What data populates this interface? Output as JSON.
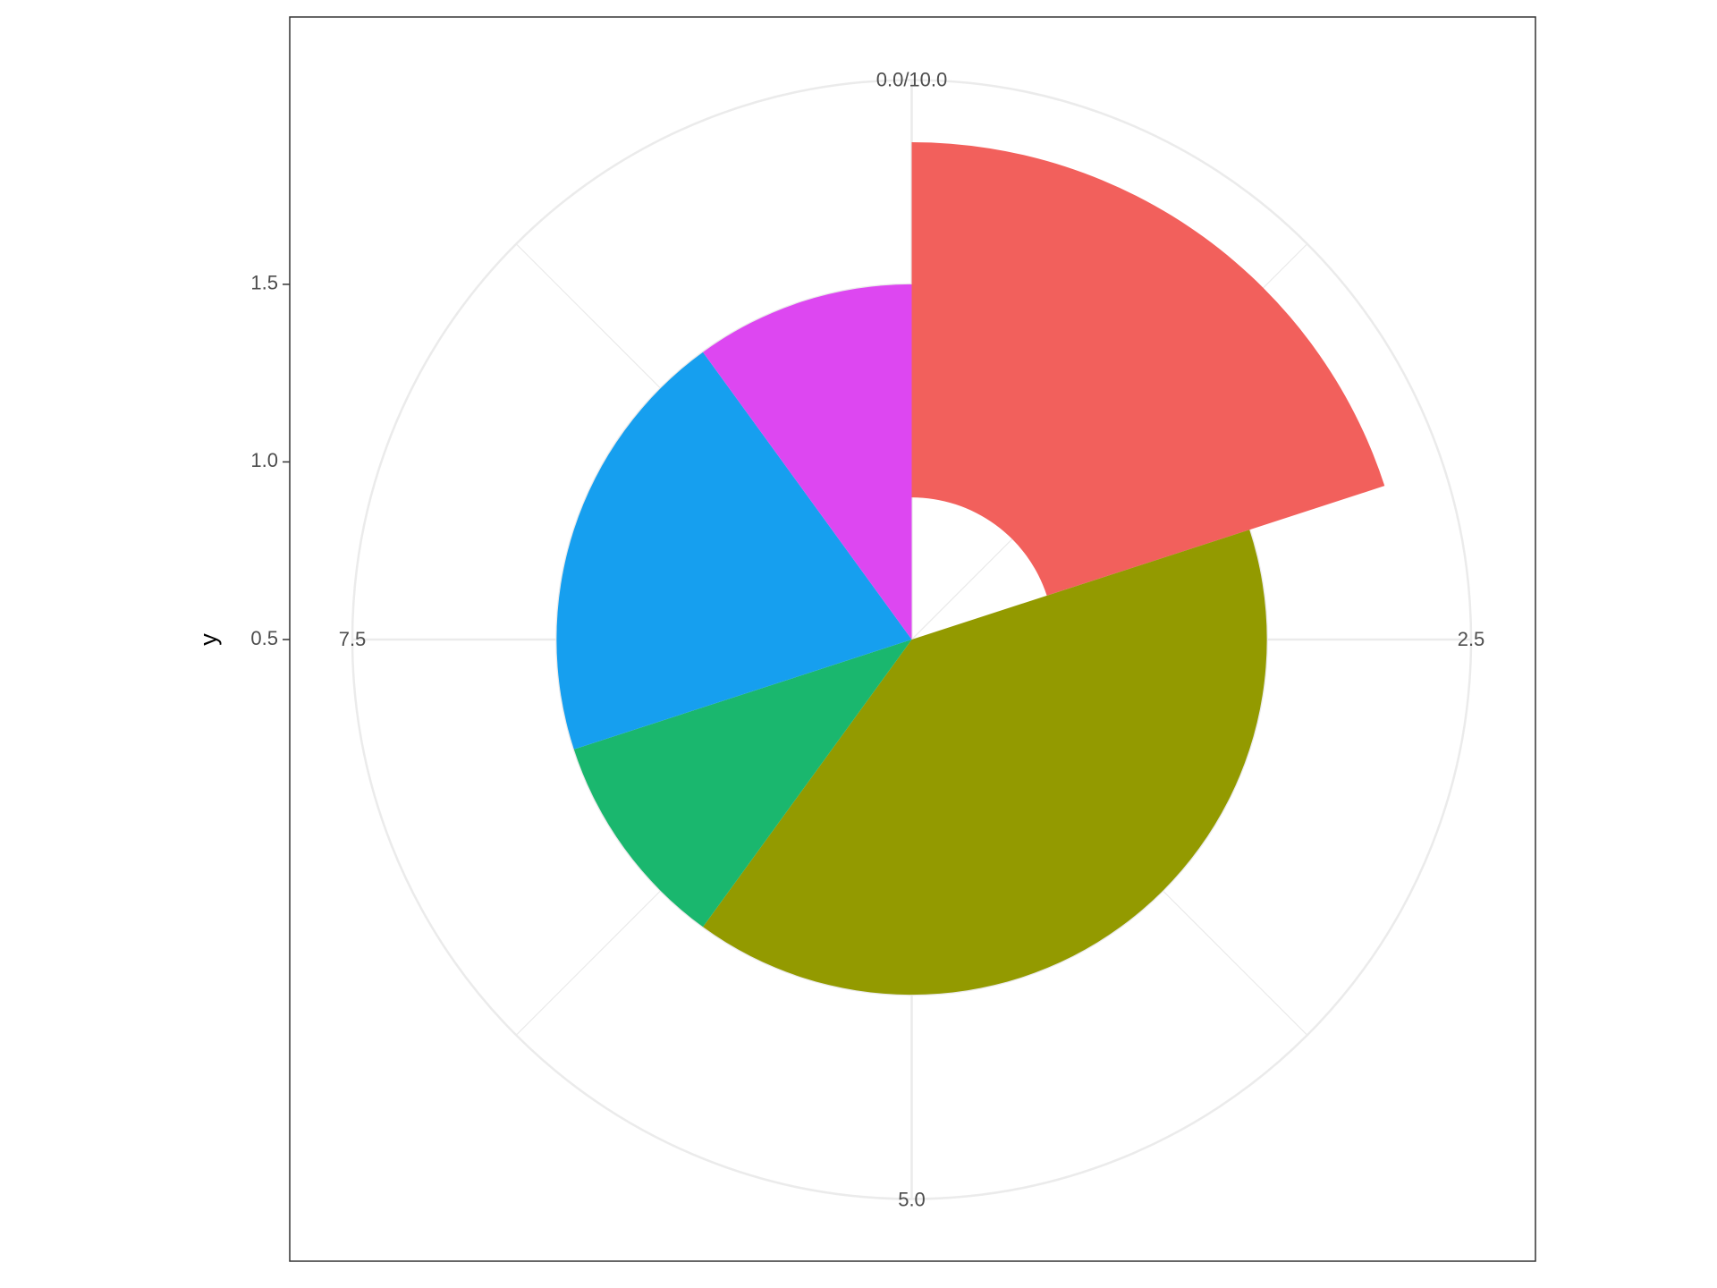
{
  "chart_data": {
    "type": "polar_rect",
    "y_label": "y",
    "rects": [
      {
        "xmin": 0,
        "xmax": 2,
        "ymin": 0.9,
        "ymax": 1.9,
        "color": "#F2605C"
      },
      {
        "xmin": 2,
        "xmax": 6,
        "ymin": 0.5,
        "ymax": 1.5,
        "color": "#939A00"
      },
      {
        "xmin": 6,
        "xmax": 7,
        "ymin": 0.5,
        "ymax": 1.5,
        "color": "#1AB76E"
      },
      {
        "xmin": 7,
        "xmax": 9,
        "ymin": 0.5,
        "ymax": 1.5,
        "color": "#169FEF"
      },
      {
        "xmin": 9,
        "xmax": 10,
        "ymin": 0.5,
        "ymax": 1.5,
        "color": "#DD47F1"
      }
    ],
    "xlim": [
      0,
      10
    ],
    "xticks": [
      {
        "value": 0,
        "label": "0.0/10.0"
      },
      2.5,
      {
        "value": 5,
        "label": "5.0"
      },
      7.5
    ],
    "ylim": [
      0.5,
      1.9
    ],
    "yticks": [
      0.5,
      {
        "value": 1,
        "label": "1.0"
      },
      1.5
    ],
    "grid": true
  }
}
